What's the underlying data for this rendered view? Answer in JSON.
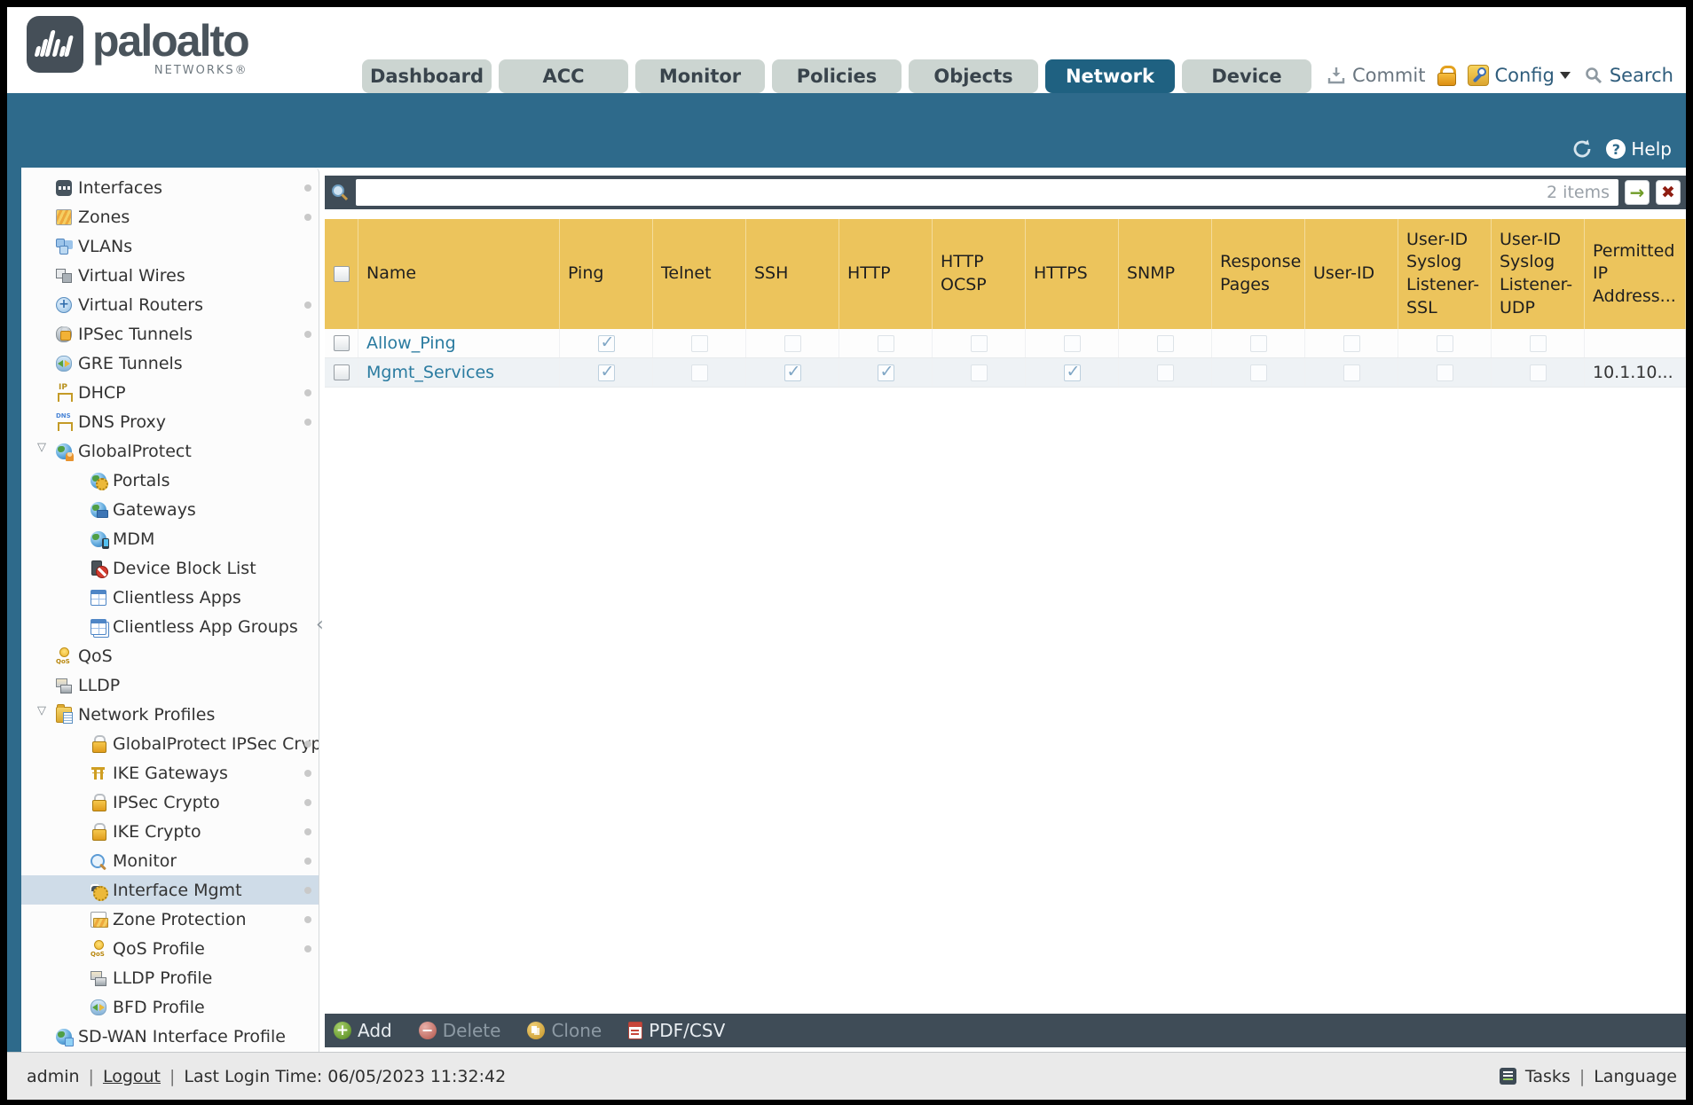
{
  "colors": {
    "teal": "#2e6a8b",
    "gold": "#ecc45c",
    "slate": "#3f4c57",
    "tab_active": "#1f6181",
    "link": "#2a7ba0",
    "selected": "#cfdce8"
  },
  "header": {
    "logo": {
      "brand": "paloalto",
      "sub": "NETWORKS®"
    },
    "tabs": [
      {
        "label": "Dashboard"
      },
      {
        "label": "ACC"
      },
      {
        "label": "Monitor"
      },
      {
        "label": "Policies"
      },
      {
        "label": "Objects"
      },
      {
        "label": "Network",
        "active": true
      },
      {
        "label": "Device"
      }
    ],
    "actions": {
      "commit": "Commit",
      "config": "Config",
      "search": "Search"
    }
  },
  "subheader": {
    "help": "Help"
  },
  "sidebar": {
    "items": [
      {
        "label": "Interfaces",
        "icon": "interfaces",
        "level": 1,
        "dot": true
      },
      {
        "label": "Zones",
        "icon": "zones",
        "level": 1,
        "dot": true
      },
      {
        "label": "VLANs",
        "icon": "vlans",
        "level": 1
      },
      {
        "label": "Virtual Wires",
        "icon": "virtual-wires",
        "level": 1
      },
      {
        "label": "Virtual Routers",
        "icon": "virtual-routers",
        "level": 1,
        "dot": true
      },
      {
        "label": "IPSec Tunnels",
        "icon": "ipsec-tunnels",
        "level": 1,
        "dot": true
      },
      {
        "label": "GRE Tunnels",
        "icon": "gre-tunnels",
        "level": 1
      },
      {
        "label": "DHCP",
        "icon": "dhcp",
        "level": 1,
        "dot": true
      },
      {
        "label": "DNS Proxy",
        "icon": "dns-proxy",
        "level": 1,
        "dot": true
      },
      {
        "label": "GlobalProtect",
        "icon": "globalprotect",
        "level": 1,
        "expanded": true
      },
      {
        "label": "Portals",
        "icon": "portals",
        "level": 2
      },
      {
        "label": "Gateways",
        "icon": "gateways",
        "level": 2
      },
      {
        "label": "MDM",
        "icon": "mdm",
        "level": 2
      },
      {
        "label": "Device Block List",
        "icon": "device-block-list",
        "level": 2
      },
      {
        "label": "Clientless Apps",
        "icon": "clientless-apps",
        "level": 2
      },
      {
        "label": "Clientless App Groups",
        "icon": "clientless-app-groups",
        "level": 2
      },
      {
        "label": "QoS",
        "icon": "qos",
        "level": 1
      },
      {
        "label": "LLDP",
        "icon": "lldp",
        "level": 1
      },
      {
        "label": "Network Profiles",
        "icon": "network-profiles",
        "level": 1,
        "expanded": true
      },
      {
        "label": "GlobalProtect IPSec Crypto",
        "icon": "lock",
        "level": 2,
        "dot": true
      },
      {
        "label": "IKE Gateways",
        "icon": "ike-gateways",
        "level": 2,
        "dot": true
      },
      {
        "label": "IPSec Crypto",
        "icon": "lock",
        "level": 2,
        "dot": true
      },
      {
        "label": "IKE Crypto",
        "icon": "lock",
        "level": 2,
        "dot": true
      },
      {
        "label": "Monitor",
        "icon": "monitor",
        "level": 2,
        "dot": true
      },
      {
        "label": "Interface Mgmt",
        "icon": "interface-mgmt",
        "level": 2,
        "dot": true,
        "selected": true
      },
      {
        "label": "Zone Protection",
        "icon": "zone-protection",
        "level": 2,
        "dot": true
      },
      {
        "label": "QoS Profile",
        "icon": "qos-profile",
        "level": 2,
        "dot": true
      },
      {
        "label": "LLDP Profile",
        "icon": "lldp-profile",
        "level": 2
      },
      {
        "label": "BFD Profile",
        "icon": "bfd-profile",
        "level": 2
      },
      {
        "label": "SD-WAN Interface Profile",
        "icon": "sd-wan",
        "level": 1
      }
    ]
  },
  "search": {
    "value": "",
    "count": "2 items"
  },
  "table": {
    "columns": [
      "Name",
      "Ping",
      "Telnet",
      "SSH",
      "HTTP",
      "HTTP OCSP",
      "HTTPS",
      "SNMP",
      "Response Pages",
      "User-ID",
      "User-ID Syslog Listener-SSL",
      "User-ID Syslog Listener-UDP",
      "Permitted IP Address..."
    ],
    "rows": [
      {
        "name": "Allow_Ping",
        "services": [
          true,
          false,
          false,
          false,
          false,
          false,
          false,
          false,
          false,
          false,
          false
        ],
        "permitted_ip": ""
      },
      {
        "name": "Mgmt_Services",
        "services": [
          true,
          false,
          true,
          true,
          false,
          true,
          false,
          false,
          false,
          false,
          false
        ],
        "permitted_ip": "10.1.10..."
      }
    ]
  },
  "toolbar": {
    "add": "Add",
    "delete": "Delete",
    "clone": "Clone",
    "pdf": "PDF/CSV"
  },
  "footer": {
    "user": "admin",
    "logout": "Logout",
    "last_login": "Last Login Time: 06/05/2023 11:32:42",
    "tasks": "Tasks",
    "language": "Language"
  }
}
